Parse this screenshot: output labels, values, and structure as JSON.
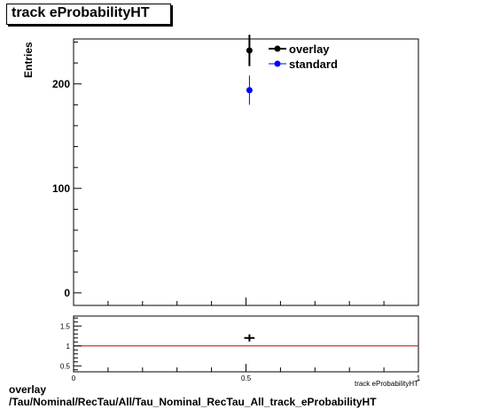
{
  "title": "track eProbabilityHT",
  "footer": {
    "line1": "overlay",
    "line2": "/Tau/Nominal/RecTau/All/Tau_Nominal_RecTau_All_track_eProbabilityHT"
  },
  "colors": {
    "overlay": "#000000",
    "standard": "#0000ff",
    "ratio_line": "#cc0000"
  },
  "chart_data": [
    {
      "type": "scatter",
      "panel": "main",
      "xlabel": "",
      "ylabel": "Entries",
      "xlim": [
        0,
        1
      ],
      "ylim": [
        -12,
        243
      ],
      "yticks": [
        0,
        100,
        200
      ],
      "xticks_labeled": [],
      "legend": {
        "position": "top-right",
        "entries": [
          "overlay",
          "standard"
        ]
      },
      "series": [
        {
          "name": "overlay",
          "points": [
            {
              "x": 0.51,
              "y": 232,
              "yerr": 15
            }
          ]
        },
        {
          "name": "standard",
          "points": [
            {
              "x": 0.51,
              "y": 194,
              "yerr": 14
            }
          ]
        }
      ]
    },
    {
      "type": "scatter",
      "panel": "ratio",
      "xlabel": "track eProbabilityHT",
      "ylabel": "",
      "xlim": [
        0,
        1
      ],
      "ylim": [
        0.35,
        1.75
      ],
      "xticks": [
        0,
        0.5,
        1
      ],
      "xtick_labels": [
        "0",
        "0.5",
        "1"
      ],
      "yticks": [
        0.5,
        1,
        1.5
      ],
      "ytick_labels": [
        "0.5",
        "1",
        "1.5"
      ],
      "reference_line": 1,
      "points": [
        {
          "x": 0.51,
          "y": 1.2,
          "xerr": 0.015,
          "yerr": 0.09
        }
      ]
    }
  ]
}
